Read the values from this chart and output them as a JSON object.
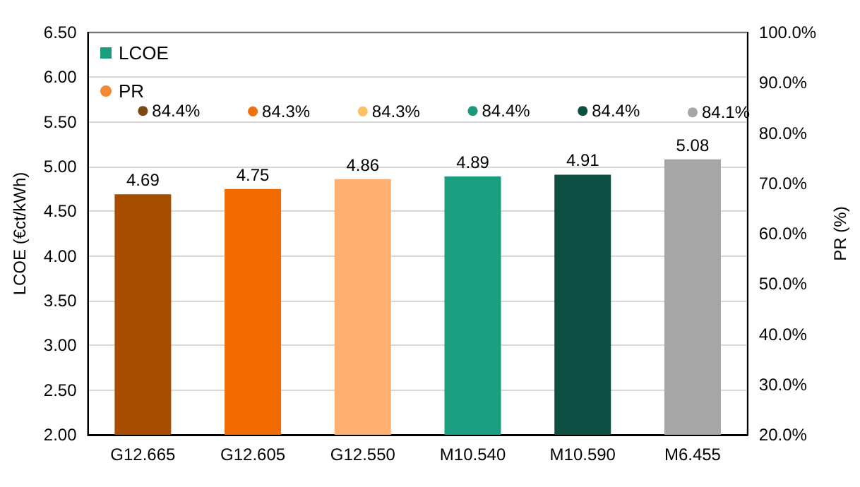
{
  "chart_data": {
    "type": "bar",
    "categories": [
      "G12.665",
      "G12.605",
      "G12.550",
      "M10.540",
      "M10.590",
      "M6.455"
    ],
    "series": [
      {
        "name": "LCOE",
        "color": "#1a9e7f",
        "colors": [
          "#a64d00",
          "#f26b00",
          "#ffb070",
          "#1a9e7f",
          "#0e4f43",
          "#a6a6a6"
        ],
        "values": [
          4.69,
          4.75,
          4.86,
          4.89,
          4.91,
          5.08
        ],
        "value_labels": [
          "4.69",
          "4.75",
          "4.86",
          "4.89",
          "4.91",
          "5.08"
        ]
      },
      {
        "name": "PR",
        "type": "scatter",
        "axis": "y2",
        "color": "#f26b00",
        "colors": [
          "#7b4a12",
          "#f07010",
          "#ffc060",
          "#1a9a7a",
          "#0e5040",
          "#a6a6a6"
        ],
        "values": [
          84.4,
          84.3,
          84.3,
          84.4,
          84.4,
          84.1
        ],
        "value_labels": [
          "84.4%",
          "84.3%",
          "84.3%",
          "84.4%",
          "84.4%",
          "84.1%"
        ]
      }
    ],
    "ylabel": "LCOE (€ct/kWh)",
    "y2label": "PR (%)",
    "ylim": [
      2,
      6.5
    ],
    "yticks": [
      {
        "value": 2,
        "label": "2.00"
      },
      {
        "value": 2.5,
        "label": "2.50"
      },
      {
        "value": 3,
        "label": "3.00"
      },
      {
        "value": 3.5,
        "label": "3.50"
      },
      {
        "value": 4,
        "label": "4.00"
      },
      {
        "value": 4.5,
        "label": "4.50"
      },
      {
        "value": 5,
        "label": "5.00"
      },
      {
        "value": 5.5,
        "label": "5.50"
      },
      {
        "value": 6,
        "label": "6.00"
      },
      {
        "value": 6.5,
        "label": "6.50"
      }
    ],
    "y2lim": [
      20,
      100
    ],
    "y2ticks": [
      {
        "value": 20,
        "label": "20.0%"
      },
      {
        "value": 30,
        "label": "30.0%"
      },
      {
        "value": 40,
        "label": "40.0%"
      },
      {
        "value": 50,
        "label": "50.0%"
      },
      {
        "value": 60,
        "label": "60.0%"
      },
      {
        "value": 70,
        "label": "70.0%"
      },
      {
        "value": 80,
        "label": "80.0%"
      },
      {
        "value": 90,
        "label": "90.0%"
      },
      {
        "value": 100,
        "label": "100.0%"
      }
    ],
    "grid": "y",
    "legend": "top left",
    "marker": "circle"
  }
}
